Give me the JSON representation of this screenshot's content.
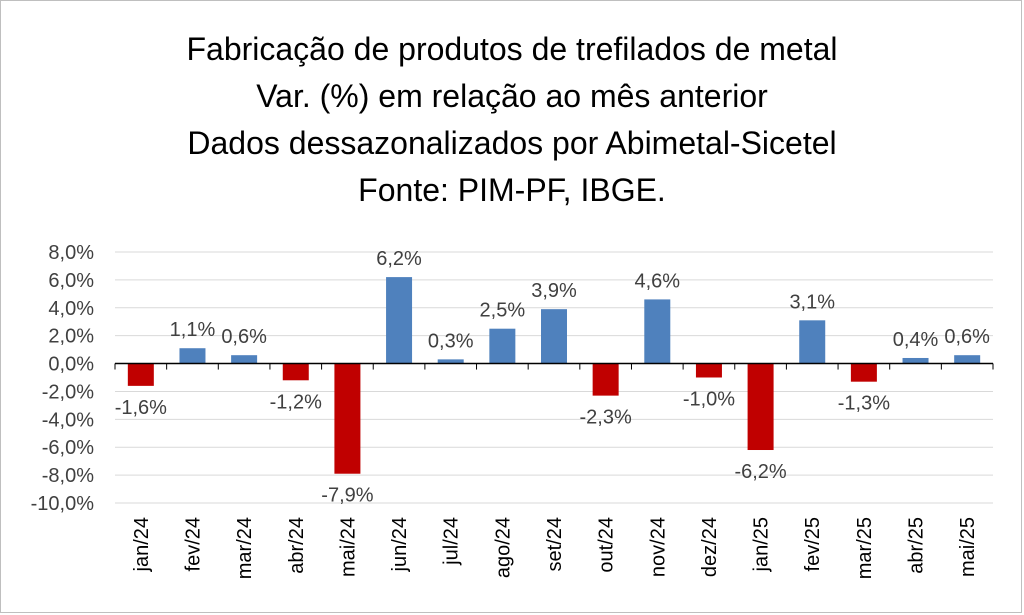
{
  "chart_data": {
    "type": "bar",
    "title_lines": [
      "Fabricação de produtos de trefilados de metal",
      "Var. (%) em relação ao mês anterior",
      "Dados dessazonalizados por Abimetal-Sicetel",
      "Fonte: PIM-PF, IBGE."
    ],
    "categories": [
      "jan/24",
      "fev/24",
      "mar/24",
      "abr/24",
      "mai/24",
      "jun/24",
      "jul/24",
      "ago/24",
      "set/24",
      "out/24",
      "nov/24",
      "dez/24",
      "jan/25",
      "fev/25",
      "mar/25",
      "abr/25",
      "mai/25"
    ],
    "values": [
      -1.6,
      1.1,
      0.6,
      -1.2,
      -7.9,
      6.2,
      0.3,
      2.5,
      3.9,
      -2.3,
      4.6,
      -1.0,
      -6.2,
      3.1,
      -1.3,
      0.4,
      0.6
    ],
    "data_labels": [
      "-1,6%",
      "1,1%",
      "0,6%",
      "-1,2%",
      "-7,9%",
      "6,2%",
      "0,3%",
      "2,5%",
      "3,9%",
      "-2,3%",
      "4,6%",
      "-1,0%",
      "-6,2%",
      "3,1%",
      "-1,3%",
      "0,4%",
      "0,6%"
    ],
    "y_ticks": [
      8,
      6,
      4,
      2,
      0,
      -2,
      -4,
      -6,
      -8,
      -10
    ],
    "y_tick_labels": [
      "8,0%",
      "6,0%",
      "4,0%",
      "2,0%",
      "0,0%",
      "-2,0%",
      "-4,0%",
      "-6,0%",
      "-8,0%",
      "-10,0%"
    ],
    "ylim": [
      -10,
      8
    ],
    "grid": true,
    "colors": {
      "positive": "#4f81bd",
      "negative": "#c00000",
      "grid": "#d9d9d9",
      "axis": "#000000",
      "text": "#404040"
    }
  }
}
